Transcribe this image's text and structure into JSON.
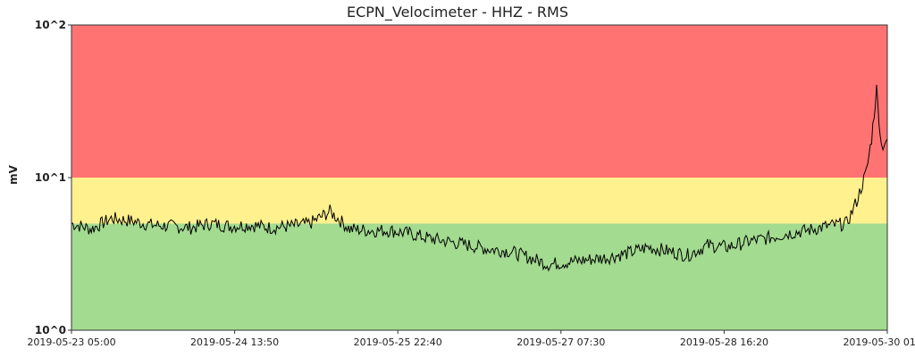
{
  "chart_data": {
    "type": "line",
    "title": "ECPN_Velocimeter - HHZ - RMS",
    "xlabel": "",
    "ylabel": "mV",
    "yscale": "log",
    "ylim": [
      1,
      100
    ],
    "y_ticks": [
      {
        "value": 1,
        "label": "10^0"
      },
      {
        "value": 10,
        "label": "10^1"
      },
      {
        "value": 100,
        "label": "10^2"
      }
    ],
    "xlim": [
      "2019-05-23 05:00",
      "2019-05-30 01:10"
    ],
    "x_ticks": [
      "2019-05-23 05:00",
      "2019-05-24 13:50",
      "2019-05-25 22:40",
      "2019-05-27 07:30",
      "2019-05-28 16:20",
      "2019-05-30 01:10"
    ],
    "threshold_bands": [
      {
        "name": "green",
        "from": 1,
        "to": 5.0,
        "color": "#a3db90"
      },
      {
        "name": "yellow",
        "from": 5.0,
        "to": 10,
        "color": "#fff18e"
      },
      {
        "name": "red",
        "from": 10,
        "to": 100,
        "color": "#ff7373"
      }
    ],
    "line_color": "#000000",
    "grid": false,
    "series": [
      {
        "x": [
          "2019-05-23 05:00",
          "2019-05-23 09:00",
          "2019-05-23 13:00",
          "2019-05-23 17:00",
          "2019-05-23 21:00",
          "2019-05-24 01:00",
          "2019-05-24 05:00",
          "2019-05-24 09:00",
          "2019-05-24 13:00",
          "2019-05-24 17:00",
          "2019-05-24 21:00",
          "2019-05-25 01:00",
          "2019-05-25 05:00",
          "2019-05-25 09:00",
          "2019-05-25 13:00",
          "2019-05-25 17:00",
          "2019-05-25 21:00",
          "2019-05-26 01:00",
          "2019-05-26 05:00",
          "2019-05-26 09:00",
          "2019-05-26 13:00",
          "2019-05-26 17:00",
          "2019-05-26 21:00",
          "2019-05-27 01:00",
          "2019-05-27 05:00",
          "2019-05-27 09:00",
          "2019-05-27 13:00",
          "2019-05-27 17:00",
          "2019-05-27 21:00",
          "2019-05-28 01:00",
          "2019-05-28 05:00",
          "2019-05-28 09:00",
          "2019-05-28 13:00",
          "2019-05-28 17:00",
          "2019-05-28 21:00",
          "2019-05-29 01:00",
          "2019-05-29 05:00",
          "2019-05-29 09:00",
          "2019-05-29 13:00",
          "2019-05-29 17:00",
          "2019-05-29 19:00",
          "2019-05-29 21:00",
          "2019-05-29 22:00",
          "2019-05-29 23:00",
          "2019-05-30 00:00",
          "2019-05-30 01:10"
        ],
        "y": [
          5.0,
          4.6,
          5.4,
          5.2,
          4.9,
          4.8,
          4.7,
          5.0,
          4.8,
          4.9,
          4.7,
          4.8,
          5.0,
          6.0,
          4.6,
          4.5,
          4.5,
          4.3,
          4.0,
          3.8,
          3.6,
          3.4,
          3.3,
          3.0,
          2.7,
          2.8,
          2.9,
          3.0,
          3.2,
          3.5,
          3.3,
          3.1,
          3.6,
          3.5,
          3.8,
          4.0,
          4.3,
          4.5,
          4.8,
          5.0,
          7.0,
          11.0,
          18.0,
          38.0,
          16.0,
          18.0
        ]
      }
    ]
  }
}
